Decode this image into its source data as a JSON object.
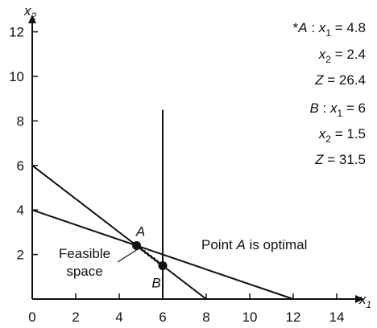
{
  "chart_data": {
    "type": "line",
    "title": "",
    "xlabel": "x",
    "xlabel_sub": "1",
    "ylabel": "x",
    "ylabel_sub": "2",
    "xlim": [
      0,
      15
    ],
    "ylim": [
      0,
      13.5
    ],
    "x_ticks": [
      0,
      2,
      4,
      6,
      8,
      10,
      12,
      14
    ],
    "y_ticks": [
      2,
      4,
      6,
      8,
      10,
      12
    ],
    "grid": false,
    "lines": [
      {
        "x": [
          0,
          8
        ],
        "y": [
          6,
          0
        ]
      },
      {
        "x": [
          0,
          12
        ],
        "y": [
          4,
          0
        ]
      },
      {
        "x": [
          6,
          6
        ],
        "y": [
          0,
          8.5
        ]
      }
    ],
    "points": [
      {
        "label": "A",
        "x": 4.8,
        "y": 2.4
      },
      {
        "label": "B",
        "x": 6,
        "y": 1.5
      }
    ],
    "feasible_space_label": [
      "Feasible",
      "space"
    ],
    "optimal_note": {
      "prefix": "Point ",
      "point": "A",
      "suffix": " is optimal"
    },
    "results": {
      "A": {
        "marker": "*",
        "name": "A",
        "x1": "4.8",
        "x2": "2.4",
        "Z": "26.4"
      },
      "B": {
        "marker": "",
        "name": "B",
        "x1": "6",
        "x2": "1.5",
        "Z": "31.5"
      }
    },
    "result_lhs": {
      "x": "x",
      "sub1": "1",
      "sub2": "2",
      "z": "Z"
    }
  }
}
